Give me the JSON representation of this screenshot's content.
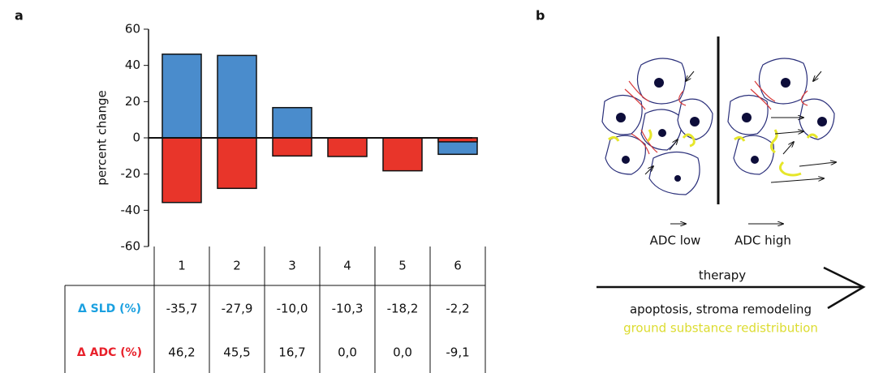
{
  "panel_labels": [
    "a",
    "b"
  ],
  "chart_data": {
    "type": "bar",
    "y_label": "percent change",
    "categories": [
      "1",
      "2",
      "3",
      "4",
      "5",
      "6"
    ],
    "series": [
      {
        "name": "Δ ADC (%)",
        "color": "#4a8ccc",
        "values": [
          46.2,
          45.5,
          16.7,
          0.0,
          0.0,
          -9.1
        ],
        "value_labels": [
          "46,2",
          "45,5",
          "16,7",
          "0,0",
          "0,0",
          "-9,1"
        ]
      },
      {
        "name": "Δ SLD (%)",
        "color": "#e8352a",
        "values": [
          -35.7,
          -27.9,
          -10.0,
          -10.3,
          -18.2,
          -2.2
        ],
        "value_labels": [
          "-35,7",
          "-27,9",
          "-10,0",
          "-10,3",
          "-18,2",
          "-2,2"
        ]
      }
    ],
    "table_row_order": [
      1,
      0
    ],
    "name_colors": [
      "#1aa0e0",
      "#e8202a"
    ],
    "ylim": [
      -60,
      60
    ],
    "yticks": [
      -60,
      -40,
      -20,
      0,
      20,
      40,
      60
    ]
  },
  "diagram": {
    "adc_low": "ADC low",
    "adc_high": "ADC high",
    "therapy": "therapy",
    "effect_1": "apoptosis, stroma remodeling",
    "effect_2": "ground substance redistribution"
  }
}
